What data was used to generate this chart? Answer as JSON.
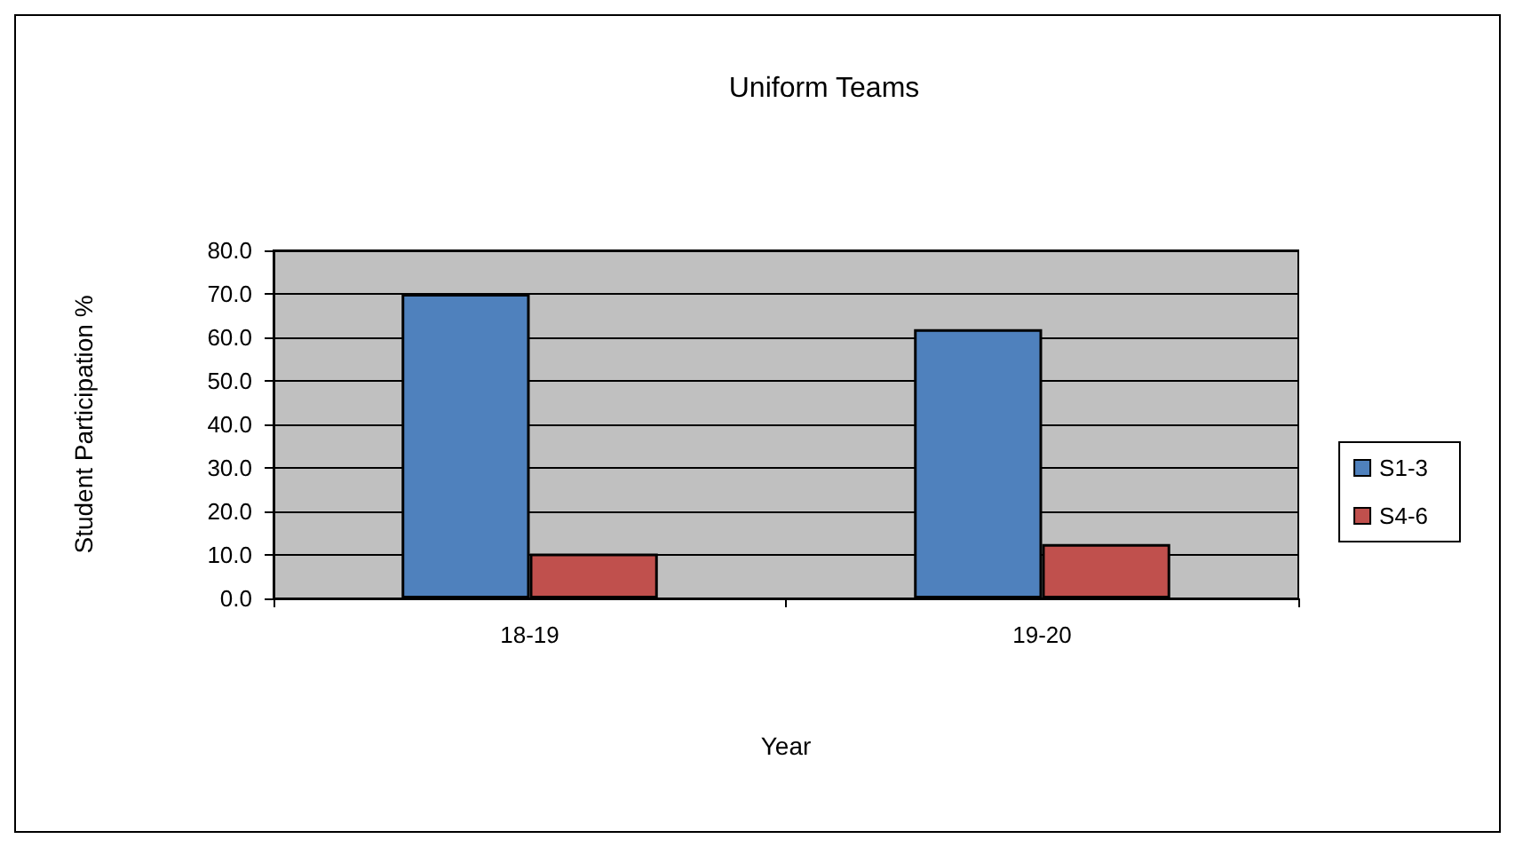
{
  "chart_data": {
    "type": "bar",
    "title": "Uniform Teams",
    "xlabel": "Year",
    "ylabel": "Student Participation %",
    "categories": [
      "18-19",
      "19-20"
    ],
    "series": [
      {
        "name": "S1-3",
        "color": "#4f81bd",
        "values": [
          70.0,
          61.9
        ]
      },
      {
        "name": "S4-6",
        "color": "#c0504d",
        "values": [
          10.3,
          12.5
        ]
      }
    ],
    "ylim": [
      0,
      80
    ],
    "yticks": [
      {
        "value": 0,
        "label": "0.0"
      },
      {
        "value": 10,
        "label": "10.0"
      },
      {
        "value": 20,
        "label": "20.0"
      },
      {
        "value": 30,
        "label": "30.0"
      },
      {
        "value": 40,
        "label": "40.0"
      },
      {
        "value": 50,
        "label": "50.0"
      },
      {
        "value": 60,
        "label": "60.0"
      },
      {
        "value": 70,
        "label": "70.0"
      },
      {
        "value": 80,
        "label": "80.0"
      }
    ],
    "grid": "y",
    "legend": "right"
  }
}
